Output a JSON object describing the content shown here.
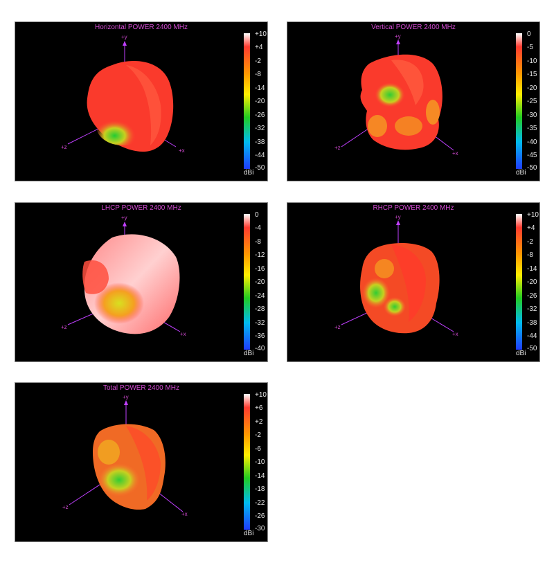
{
  "chart_data": [
    {
      "type": "surface3d",
      "title": "Horizontal POWER 2400  MHz",
      "axes": [
        "+y",
        "+z",
        "+x"
      ],
      "colorbar": {
        "unit": "dBi",
        "range": [
          -50,
          10
        ],
        "ticks": [
          "+10",
          "+4",
          "-2",
          "-8",
          "-14",
          "-20",
          "-26",
          "-32",
          "-38",
          "-44",
          "-50"
        ]
      },
      "dominant_level": "red",
      "low_regions": [
        "green patch toward +z"
      ]
    },
    {
      "type": "surface3d",
      "title": "Vertical POWER 2400  MHz",
      "axes": [
        "+y",
        "+z",
        "+x"
      ],
      "colorbar": {
        "unit": "dBi",
        "range": [
          -50,
          0
        ],
        "ticks": [
          "0",
          "-5",
          "-10",
          "-15",
          "-20",
          "-25",
          "-30",
          "-35",
          "-40",
          "-45",
          "-50"
        ]
      },
      "dominant_level": "red",
      "low_regions": [
        "green patch upper-left",
        "yellow patches lower"
      ]
    },
    {
      "type": "surface3d",
      "title": "LHCP POWER 2400  MHz",
      "axes": [
        "+y",
        "+z",
        "+x"
      ],
      "colorbar": {
        "unit": "dBi",
        "range": [
          -40,
          0
        ],
        "ticks": [
          "0",
          "-4",
          "-8",
          "-12",
          "-16",
          "-20",
          "-24",
          "-28",
          "-32",
          "-36",
          "-40"
        ]
      },
      "dominant_level": "pink-red",
      "low_regions": [
        "yellow patch lower-left"
      ]
    },
    {
      "type": "surface3d",
      "title": "RHCP POWER 2400  MHz",
      "axes": [
        "+y",
        "+z",
        "+x"
      ],
      "colorbar": {
        "unit": "dBi",
        "range": [
          -50,
          10
        ],
        "ticks": [
          "+10",
          "+4",
          "-2",
          "-8",
          "-14",
          "-20",
          "-26",
          "-32",
          "-38",
          "-44",
          "-50"
        ]
      },
      "dominant_level": "red-orange",
      "low_regions": [
        "green patches lower-left"
      ]
    },
    {
      "type": "surface3d",
      "title": "Total POWER 2400  MHz",
      "axes": [
        "+y",
        "+z",
        "+x"
      ],
      "colorbar": {
        "unit": "dBi",
        "range": [
          -30,
          10
        ],
        "ticks": [
          "+10",
          "+6",
          "+2",
          "-2",
          "-6",
          "-10",
          "-14",
          "-18",
          "-22",
          "-26",
          "-30"
        ]
      },
      "dominant_level": "orange-red",
      "low_regions": [
        "green patch lower-left"
      ]
    }
  ],
  "colors": {
    "title": "#d04ad0",
    "axis": "#c040ff",
    "background": "#000000",
    "colorbar_stops": [
      "#ffffff",
      "#ff3b30",
      "#ff9900",
      "#ffee00",
      "#22cc22",
      "#00bbee",
      "#1f3cff"
    ]
  }
}
